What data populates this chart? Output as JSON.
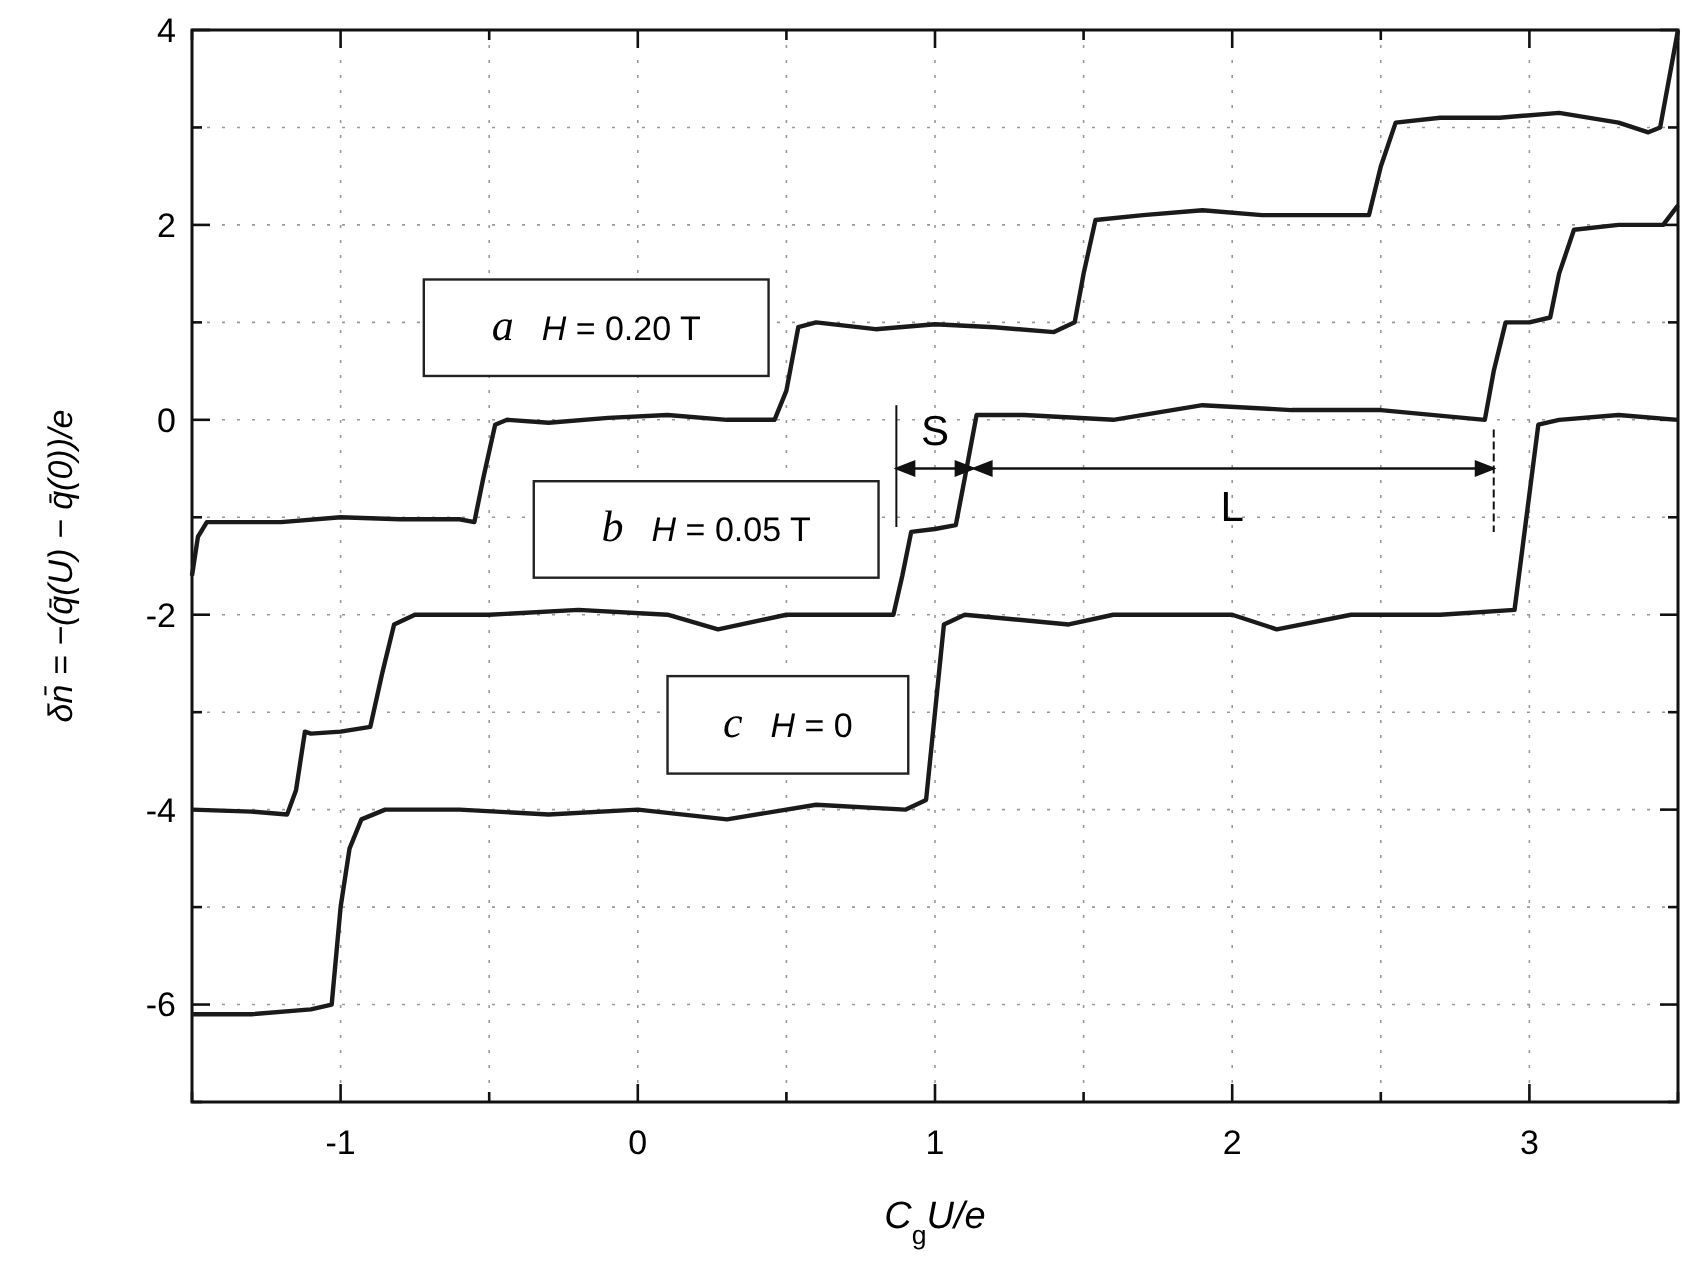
{
  "chart_data": {
    "type": "line",
    "xlabel": "C$_{g}$U/e",
    "ylabel": "δn̄ = −(q̄(U) − q̄(0))/e",
    "xlim": [
      -1.5,
      3.5
    ],
    "xticks": [
      {
        "value": -1.5,
        "label": null
      },
      -1,
      {
        "value": -0.5,
        "label": null
      },
      0,
      {
        "value": 0.5,
        "label": null
      },
      1,
      {
        "value": 1.5,
        "label": null
      },
      2,
      {
        "value": 2.5,
        "label": null
      },
      3,
      {
        "value": 3.5,
        "label": null
      }
    ],
    "ylim": [
      -7,
      4
    ],
    "yticks": [
      {
        "value": -7,
        "label": null
      },
      -6,
      {
        "value": -5,
        "label": null
      },
      -4,
      {
        "value": -3,
        "label": null
      },
      -2,
      {
        "value": -1,
        "label": null
      },
      0,
      {
        "value": 1,
        "label": null
      },
      2,
      {
        "value": 3,
        "label": null
      },
      4
    ],
    "grid": true,
    "line_style": "solid",
    "marker": "none",
    "series": [
      {
        "name": "a H = 0.20 T",
        "color": "#1a1a1a",
        "x": [
          -1.5,
          -1.48,
          -1.45,
          -1.2,
          -1.0,
          -0.8,
          -0.6,
          -0.55,
          -0.52,
          -0.48,
          -0.44,
          -0.3,
          -0.1,
          0.1,
          0.3,
          0.46,
          0.5,
          0.54,
          0.6,
          0.8,
          1.0,
          1.2,
          1.4,
          1.47,
          1.5,
          1.54,
          1.7,
          1.9,
          2.1,
          2.3,
          2.46,
          2.5,
          2.55,
          2.7,
          2.9,
          3.1,
          3.3,
          3.4,
          3.44,
          3.5
        ],
        "values": [
          -1.6,
          -1.2,
          -1.05,
          -1.05,
          -1.0,
          -1.02,
          -1.02,
          -1.05,
          -0.6,
          -0.05,
          0,
          -0.03,
          0.02,
          0.05,
          0,
          0,
          0.3,
          0.95,
          1.0,
          0.93,
          0.98,
          0.95,
          0.9,
          1.0,
          1.5,
          2.05,
          2.1,
          2.15,
          2.1,
          2.1,
          2.1,
          2.6,
          3.05,
          3.1,
          3.1,
          3.15,
          3.05,
          2.95,
          3.0,
          4.0
        ]
      },
      {
        "name": "b H = 0.05 T",
        "color": "#1a1a1a",
        "x": [
          -1.5,
          -1.3,
          -1.18,
          -1.15,
          -1.12,
          -1.1,
          -1.0,
          -0.9,
          -0.86,
          -0.82,
          -0.75,
          -0.5,
          -0.2,
          0.1,
          0.27,
          0.5,
          0.7,
          0.86,
          0.89,
          0.92,
          1.0,
          1.07,
          1.1,
          1.14,
          1.3,
          1.6,
          1.9,
          2.2,
          2.5,
          2.85,
          2.88,
          2.92,
          3.0,
          3.07,
          3.1,
          3.15,
          3.3,
          3.45,
          3.5
        ],
        "values": [
          -4.0,
          -4.02,
          -4.05,
          -3.8,
          -3.2,
          -3.22,
          -3.2,
          -3.15,
          -2.6,
          -2.1,
          -2.0,
          -2.0,
          -1.95,
          -2.0,
          -2.15,
          -2.0,
          -2.0,
          -2.0,
          -1.6,
          -1.15,
          -1.12,
          -1.08,
          -0.6,
          0.05,
          0.05,
          0,
          0.15,
          0.1,
          0.1,
          0,
          0.5,
          1.0,
          1.0,
          1.05,
          1.5,
          1.95,
          2.0,
          2.0,
          2.2
        ]
      },
      {
        "name": "c H = 0",
        "color": "#1a1a1a",
        "x": [
          -1.5,
          -1.3,
          -1.1,
          -1.03,
          -1.0,
          -0.97,
          -0.93,
          -0.85,
          -0.6,
          -0.3,
          0,
          0.3,
          0.6,
          0.9,
          0.97,
          1.0,
          1.03,
          1.1,
          1.45,
          1.6,
          2.0,
          2.15,
          2.4,
          2.7,
          2.95,
          2.99,
          3.03,
          3.1,
          3.3,
          3.5
        ],
        "values": [
          -6.1,
          -6.1,
          -6.05,
          -6.0,
          -5.0,
          -4.4,
          -4.1,
          -4.0,
          -4.0,
          -4.05,
          -4.0,
          -4.1,
          -3.95,
          -4.0,
          -3.9,
          -3.0,
          -2.1,
          -2.0,
          -2.1,
          -2.0,
          -2.0,
          -2.15,
          -2.0,
          -2.0,
          -1.95,
          -1.0,
          -0.05,
          0,
          0.05,
          0
        ]
      }
    ],
    "annotations": [
      "S",
      "L"
    ]
  }
}
